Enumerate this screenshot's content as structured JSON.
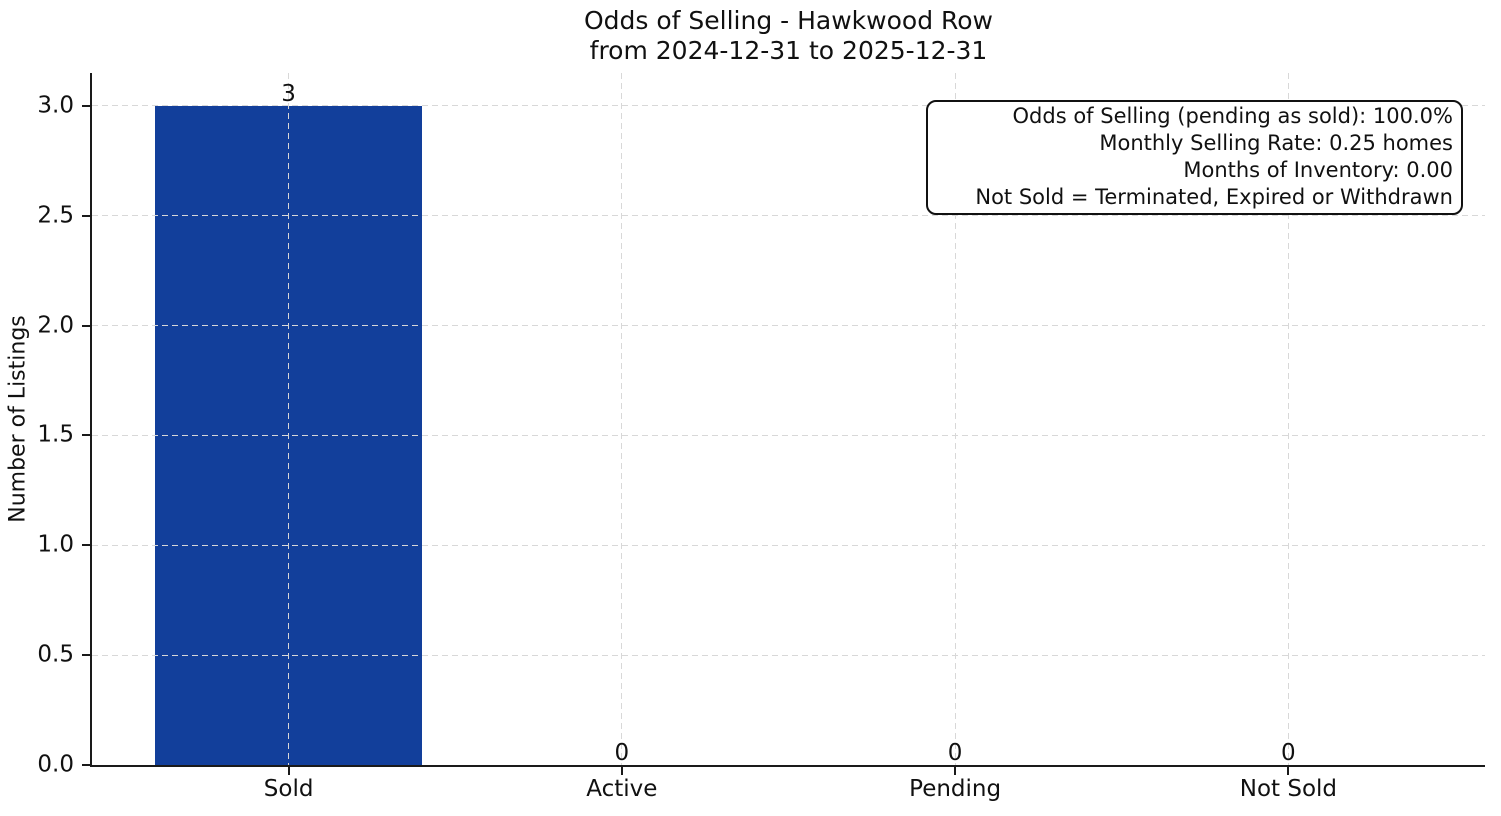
{
  "chart_data": {
    "type": "bar",
    "title": "Odds of Selling - Hawkwood Row\nfrom 2024-12-31 to 2025-12-31",
    "title_lines": [
      "Odds of Selling - Hawkwood Row",
      "from 2024-12-31 to 2025-12-31"
    ],
    "xlabel": "",
    "ylabel": "Number of Listings",
    "categories": [
      "Sold",
      "Active",
      "Pending",
      "Not Sold"
    ],
    "values": [
      3,
      0,
      0,
      0
    ],
    "bar_value_labels": [
      "3",
      "0",
      "0",
      "0"
    ],
    "yticks": [
      0.0,
      0.5,
      1.0,
      1.5,
      2.0,
      2.5,
      3.0
    ],
    "ytick_labels": [
      "0.0",
      "0.5",
      "1.0",
      "1.5",
      "2.0",
      "2.5",
      "3.0"
    ],
    "ylim": [
      0,
      3.15
    ],
    "xlim": [
      -0.59,
      3.59
    ],
    "bar_width": 0.8,
    "bar_color": "#123f9b",
    "grid": "dashed light-gray gridlines on both axes, drawn above bars",
    "legend": "none",
    "annotation_box": {
      "position": "top-right",
      "text_align": "right",
      "lines": [
        "Odds of Selling (pending as sold): 100.0%",
        "Monthly Selling Rate: 0.25 homes",
        "Months of Inventory: 0.00",
        "Not Sold = Terminated, Expired or Withdrawn"
      ],
      "stats": {
        "odds_of_selling_pct": 100.0,
        "monthly_selling_rate_homes": 0.25,
        "months_of_inventory": 0.0,
        "not_sold_definition": "Terminated, Expired or Withdrawn"
      }
    }
  }
}
